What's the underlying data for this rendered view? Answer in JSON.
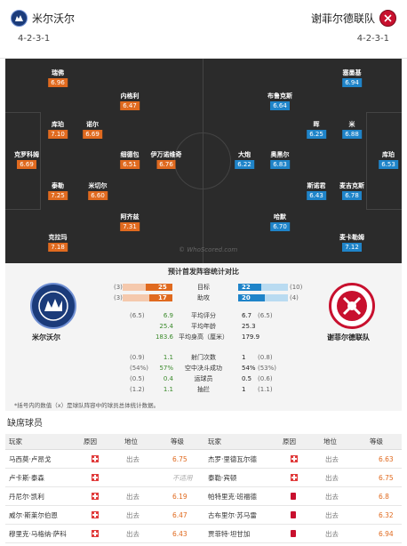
{
  "home": {
    "name": "米尔沃尔",
    "formation": "4-2-3-1"
  },
  "away": {
    "name": "谢菲尔德联队",
    "formation": "4-2-3-1"
  },
  "home_players": [
    {
      "name": "瑞佛",
      "rating": "6.96"
    },
    {
      "name": "内格利",
      "rating": "6.47"
    },
    {
      "name": "库珀",
      "rating": "7.10"
    },
    {
      "name": "诺尔",
      "rating": "6.69"
    },
    {
      "name": "克罗科姆",
      "rating": "6.69"
    },
    {
      "name": "细德包",
      "rating": "6.51"
    },
    {
      "name": "伊万诺维奇",
      "rating": "6.76"
    },
    {
      "name": "泰勒",
      "rating": "7.25"
    },
    {
      "name": "米切尔",
      "rating": "6.60"
    },
    {
      "name": "阿齐兹",
      "rating": "7.31"
    },
    {
      "name": "克拉玛",
      "rating": "7.18"
    }
  ],
  "away_players": [
    {
      "name": "塞墨基",
      "rating": "6.94"
    },
    {
      "name": "布鲁克斯",
      "rating": "6.64"
    },
    {
      "name": "晖",
      "rating": "6.25"
    },
    {
      "name": "米",
      "rating": "6.88"
    },
    {
      "name": "大炮",
      "rating": "6.22"
    },
    {
      "name": "奥黑尔",
      "rating": "6.83"
    },
    {
      "name": "库珀",
      "rating": "6.53"
    },
    {
      "name": "斯诺君",
      "rating": "6.43"
    },
    {
      "name": "麦吉克斯",
      "rating": "6.78"
    },
    {
      "name": "哈默",
      "rating": "6.70"
    },
    {
      "name": "麦卡勒姆",
      "rating": "7.12"
    }
  ],
  "watermark": "© WhoScored.com",
  "stats_title": "预计首发阵容统计对比",
  "home_team_label": "米尔沃尔",
  "away_team_label": "谢菲尔德联队",
  "bar_stats": [
    {
      "label": "目标",
      "home_rank": "(3)",
      "home_val": "25",
      "away_val": "22",
      "away_rank": "(10)",
      "home_frac": 0.53,
      "away_frac": 0.47
    },
    {
      "label": "助攻",
      "home_rank": "(3)",
      "home_val": "17",
      "away_val": "20",
      "away_rank": "(4)",
      "home_frac": 0.46,
      "away_frac": 0.54
    }
  ],
  "stats_a": [
    {
      "label": "平均评分",
      "home_rank": "(6.5)",
      "home_val": "6.9",
      "away_val": "6.7",
      "away_rank": "(6.5)"
    },
    {
      "label": "平均年龄",
      "home_rank": "",
      "home_val": "25.4",
      "away_val": "25.3",
      "away_rank": ""
    },
    {
      "label": "平均身高（厘米）",
      "home_rank": "",
      "home_val": "183.6",
      "away_val": "179.9",
      "away_rank": ""
    }
  ],
  "stats_b": [
    {
      "label": "射门次数",
      "home_rank": "(0.9)",
      "home_val": "1.1",
      "away_val": "1",
      "away_rank": "(0.8)"
    },
    {
      "label": "空中决斗成功",
      "home_rank": "(54%)",
      "home_val": "57%",
      "away_val": "54%",
      "away_rank": "(53%)"
    },
    {
      "label": "运球员",
      "home_rank": "(0.5)",
      "home_val": "0.4",
      "away_val": "0.5",
      "away_rank": "(0.6)"
    },
    {
      "label": "抽拦",
      "home_rank": "(1.2)",
      "home_val": "1.1",
      "away_val": "1",
      "away_rank": "(1.1)"
    }
  ],
  "note": "*括号内的数值（x）是球队阵容中的球员总体统计数据。",
  "absent_title": "缺席球员",
  "table_headers": {
    "player": "玩家",
    "reason": "原因",
    "status": "地位",
    "rating": "等级"
  },
  "absent_home": [
    {
      "player": "马西莫·卢昂戈",
      "reason": "injury",
      "status": "出去",
      "rating": "6.75"
    },
    {
      "player": "卢卡斯·泰森",
      "reason": "injury",
      "status": "不适用",
      "rating": ""
    },
    {
      "player": "丹尼尔·凯利",
      "reason": "injury",
      "status": "出去",
      "rating": "6.19"
    },
    {
      "player": "威尔·斯莱尔伯恩",
      "reason": "injury",
      "status": "出去",
      "rating": "6.47"
    },
    {
      "player": "穆里克·马格纳·萨科",
      "reason": "injury",
      "status": "出去",
      "rating": "6.43"
    }
  ],
  "absent_away": [
    {
      "player": "杰罗·里德瓦尔德",
      "reason": "injury",
      "status": "出去",
      "rating": "6.63"
    },
    {
      "player": "泰勒·宾顿",
      "reason": "injury",
      "status": "出去",
      "rating": "6.75"
    },
    {
      "player": "帕特里克·班福德",
      "reason": "suspension",
      "status": "出去",
      "rating": "6.8"
    },
    {
      "player": "古布里尔·苏马雷",
      "reason": "suspension",
      "status": "出去",
      "rating": "6.32"
    },
    {
      "player": "贾菲特·坦甘加",
      "reason": "suspension",
      "status": "出去",
      "rating": "6.94"
    }
  ]
}
